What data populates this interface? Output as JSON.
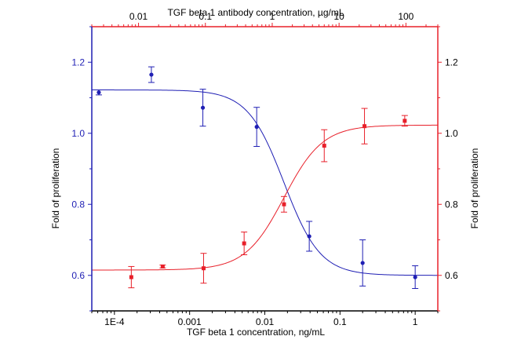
{
  "chart_data": {
    "type": "scatter",
    "bottom_axis": {
      "label": "TGF beta 1 concentration, ng/mL",
      "scale": "log",
      "range": [
        5e-05,
        2
      ],
      "ticks": [
        {
          "value": 0.0001,
          "label": "1E-4"
        },
        {
          "value": 0.001,
          "label": "0.001"
        },
        {
          "value": 0.01,
          "label": "0.01"
        },
        {
          "value": 0.1,
          "label": "0.1"
        },
        {
          "value": 1,
          "label": "1"
        }
      ],
      "color": "#000000"
    },
    "top_axis": {
      "label": "TGF beta 1 antibody concentration, µg/mL",
      "scale": "log",
      "range": [
        0.002,
        300
      ],
      "ticks": [
        {
          "value": 0.01,
          "label": "0.01"
        },
        {
          "value": 0.1,
          "label": "0.1"
        },
        {
          "value": 1,
          "label": "1"
        },
        {
          "value": 10,
          "label": "10"
        },
        {
          "value": 100,
          "label": "100"
        }
      ],
      "color": "#000000",
      "line_color": "#e8202a"
    },
    "left_axis": {
      "label": "Fold of proliferation",
      "range": [
        0.5,
        1.3
      ],
      "ticks": [
        {
          "value": 0.6,
          "label": "0.6"
        },
        {
          "value": 0.8,
          "label": "0.8"
        },
        {
          "value": 1.0,
          "label": "1.0"
        },
        {
          "value": 1.2,
          "label": "1.2"
        }
      ],
      "color": "#1f1fb4"
    },
    "right_axis": {
      "label": "Fold of proliferation",
      "range": [
        0.5,
        1.3
      ],
      "ticks": [
        {
          "value": 0.6,
          "label": "0.6"
        },
        {
          "value": 0.8,
          "label": "0.8"
        },
        {
          "value": 1.0,
          "label": "1.0"
        },
        {
          "value": 1.2,
          "label": "1.2"
        }
      ],
      "color": "#e8202a"
    },
    "series": [
      {
        "axis": "bottom",
        "color": "#1f1fb4",
        "points": [
          {
            "x": 6.2e-05,
            "y": 1.115,
            "err": 0.007
          },
          {
            "x": 0.00031,
            "y": 1.165,
            "err": 0.022
          },
          {
            "x": 0.0015,
            "y": 1.072,
            "err": 0.052
          },
          {
            "x": 0.0078,
            "y": 1.018,
            "err": 0.055
          },
          {
            "x": 0.039,
            "y": 0.71,
            "err": 0.042
          },
          {
            "x": 0.2,
            "y": 0.635,
            "err": 0.065
          },
          {
            "x": 1.0,
            "y": 0.595,
            "err": 0.032
          }
        ],
        "fit": {
          "type": "logistic",
          "top": 1.122,
          "bottom": 0.6,
          "ec50": 0.018,
          "hill": 1.8
        }
      },
      {
        "axis": "top",
        "color": "#e8202a",
        "points": [
          {
            "x": 0.0078,
            "y": 0.595,
            "err": 0.03
          },
          {
            "x": 0.023,
            "y": 0.625,
            "err": 0.004
          },
          {
            "x": 0.094,
            "y": 0.62,
            "err": 0.042
          },
          {
            "x": 0.38,
            "y": 0.69,
            "err": 0.032
          },
          {
            "x": 1.5,
            "y": 0.8,
            "err": 0.022
          },
          {
            "x": 6.0,
            "y": 0.965,
            "err": 0.045
          },
          {
            "x": 24,
            "y": 1.02,
            "err": 0.05
          },
          {
            "x": 96,
            "y": 1.035,
            "err": 0.015
          }
        ],
        "fit": {
          "type": "logistic",
          "bottom": 0.615,
          "top": 1.023,
          "ec50": 1.5,
          "hill": 1.5
        }
      }
    ]
  }
}
